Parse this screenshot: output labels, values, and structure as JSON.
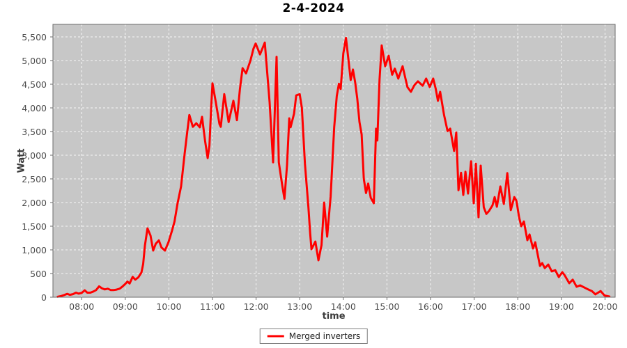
{
  "chart_data": {
    "type": "line",
    "title": "2-4-2024",
    "xlabel": "time",
    "ylabel": "Watt",
    "xlim": [
      7.342,
      20.233
    ],
    "ylim": [
      0,
      5765
    ],
    "grid": true,
    "legend_position": "bottom-center",
    "colors": {
      "plot_background": "#c7c7c7",
      "gridline": "#ffffff",
      "axis": "#6b6b6b",
      "series": "#ff0000"
    },
    "x_ticks": [
      {
        "value": 8,
        "label": "08:00"
      },
      {
        "value": 9,
        "label": "09:00"
      },
      {
        "value": 10,
        "label": "10:00"
      },
      {
        "value": 11,
        "label": "11:00"
      },
      {
        "value": 12,
        "label": "12:00"
      },
      {
        "value": 13,
        "label": "13:00"
      },
      {
        "value": 14,
        "label": "14:00"
      },
      {
        "value": 15,
        "label": "15:00"
      },
      {
        "value": 16,
        "label": "16:00"
      },
      {
        "value": 17,
        "label": "17:00"
      },
      {
        "value": 18,
        "label": "18:00"
      },
      {
        "value": 19,
        "label": "19:00"
      },
      {
        "value": 20,
        "label": "20:00"
      }
    ],
    "y_ticks": [
      {
        "value": 0,
        "label": "0"
      },
      {
        "value": 500,
        "label": "500"
      },
      {
        "value": 1000,
        "label": "1,000"
      },
      {
        "value": 1500,
        "label": "1,500"
      },
      {
        "value": 2000,
        "label": "2,000"
      },
      {
        "value": 2500,
        "label": "2,500"
      },
      {
        "value": 3000,
        "label": "3,000"
      },
      {
        "value": 3500,
        "label": "3,500"
      },
      {
        "value": 4000,
        "label": "4,000"
      },
      {
        "value": 4500,
        "label": "4,500"
      },
      {
        "value": 5000,
        "label": "5,000"
      },
      {
        "value": 5500,
        "label": "5,500"
      }
    ],
    "series": [
      {
        "name": "Merged inverters",
        "color": "#ff0000",
        "points": [
          [
            7.45,
            10
          ],
          [
            7.53,
            25
          ],
          [
            7.6,
            45
          ],
          [
            7.67,
            70
          ],
          [
            7.73,
            50
          ],
          [
            7.8,
            65
          ],
          [
            7.87,
            95
          ],
          [
            7.93,
            75
          ],
          [
            8.0,
            90
          ],
          [
            8.07,
            145
          ],
          [
            8.13,
            95
          ],
          [
            8.2,
            95
          ],
          [
            8.27,
            120
          ],
          [
            8.33,
            150
          ],
          [
            8.4,
            230
          ],
          [
            8.47,
            185
          ],
          [
            8.53,
            165
          ],
          [
            8.6,
            180
          ],
          [
            8.67,
            150
          ],
          [
            8.73,
            150
          ],
          [
            8.8,
            160
          ],
          [
            8.87,
            180
          ],
          [
            8.93,
            220
          ],
          [
            9.0,
            280
          ],
          [
            9.05,
            330
          ],
          [
            9.1,
            290
          ],
          [
            9.17,
            430
          ],
          [
            9.23,
            370
          ],
          [
            9.3,
            420
          ],
          [
            9.37,
            520
          ],
          [
            9.41,
            700
          ],
          [
            9.45,
            1090
          ],
          [
            9.51,
            1455
          ],
          [
            9.58,
            1300
          ],
          [
            9.64,
            985
          ],
          [
            9.7,
            1130
          ],
          [
            9.77,
            1200
          ],
          [
            9.83,
            1050
          ],
          [
            9.91,
            985
          ],
          [
            9.99,
            1160
          ],
          [
            10.07,
            1400
          ],
          [
            10.13,
            1600
          ],
          [
            10.2,
            1985
          ],
          [
            10.28,
            2340
          ],
          [
            10.36,
            3015
          ],
          [
            10.41,
            3410
          ],
          [
            10.47,
            3850
          ],
          [
            10.55,
            3600
          ],
          [
            10.63,
            3675
          ],
          [
            10.71,
            3590
          ],
          [
            10.76,
            3810
          ],
          [
            10.83,
            3300
          ],
          [
            10.89,
            2940
          ],
          [
            10.93,
            3200
          ],
          [
            10.97,
            4000
          ],
          [
            11.0,
            4520
          ],
          [
            11.08,
            4100
          ],
          [
            11.16,
            3660
          ],
          [
            11.19,
            3600
          ],
          [
            11.27,
            4290
          ],
          [
            11.37,
            3700
          ],
          [
            11.48,
            4150
          ],
          [
            11.56,
            3740
          ],
          [
            11.63,
            4400
          ],
          [
            11.69,
            4840
          ],
          [
            11.77,
            4730
          ],
          [
            11.87,
            5000
          ],
          [
            11.94,
            5250
          ],
          [
            11.99,
            5360
          ],
          [
            12.09,
            5130
          ],
          [
            12.2,
            5380
          ],
          [
            12.31,
            4120
          ],
          [
            12.39,
            2850
          ],
          [
            12.47,
            5080
          ],
          [
            12.52,
            2850
          ],
          [
            12.6,
            2355
          ],
          [
            12.65,
            2080
          ],
          [
            12.71,
            2790
          ],
          [
            12.76,
            3780
          ],
          [
            12.79,
            3590
          ],
          [
            12.87,
            3880
          ],
          [
            12.92,
            4265
          ],
          [
            13.0,
            4290
          ],
          [
            13.05,
            4000
          ],
          [
            13.12,
            2820
          ],
          [
            13.2,
            1900
          ],
          [
            13.24,
            1350
          ],
          [
            13.27,
            1015
          ],
          [
            13.36,
            1175
          ],
          [
            13.43,
            780
          ],
          [
            13.5,
            1100
          ],
          [
            13.56,
            2000
          ],
          [
            13.63,
            1280
          ],
          [
            13.71,
            2130
          ],
          [
            13.79,
            3590
          ],
          [
            13.85,
            4250
          ],
          [
            13.9,
            4510
          ],
          [
            13.94,
            4400
          ],
          [
            14.0,
            5150
          ],
          [
            14.06,
            5480
          ],
          [
            14.12,
            5000
          ],
          [
            14.17,
            4590
          ],
          [
            14.22,
            4810
          ],
          [
            14.27,
            4550
          ],
          [
            14.32,
            4200
          ],
          [
            14.37,
            3700
          ],
          [
            14.42,
            3440
          ],
          [
            14.47,
            2500
          ],
          [
            14.52,
            2200
          ],
          [
            14.57,
            2400
          ],
          [
            14.63,
            2100
          ],
          [
            14.7,
            1985
          ],
          [
            14.75,
            3560
          ],
          [
            14.78,
            3310
          ],
          [
            14.83,
            4600
          ],
          [
            14.88,
            5320
          ],
          [
            14.96,
            4880
          ],
          [
            15.04,
            5100
          ],
          [
            15.12,
            4700
          ],
          [
            15.18,
            4830
          ],
          [
            15.26,
            4620
          ],
          [
            15.36,
            4880
          ],
          [
            15.47,
            4440
          ],
          [
            15.55,
            4340
          ],
          [
            15.63,
            4480
          ],
          [
            15.71,
            4560
          ],
          [
            15.82,
            4470
          ],
          [
            15.9,
            4620
          ],
          [
            15.98,
            4440
          ],
          [
            16.06,
            4620
          ],
          [
            16.12,
            4400
          ],
          [
            16.17,
            4150
          ],
          [
            16.22,
            4340
          ],
          [
            16.31,
            3850
          ],
          [
            16.39,
            3510
          ],
          [
            16.45,
            3560
          ],
          [
            16.54,
            3090
          ],
          [
            16.59,
            3480
          ],
          [
            16.64,
            2260
          ],
          [
            16.7,
            2630
          ],
          [
            16.75,
            2160
          ],
          [
            16.8,
            2650
          ],
          [
            16.86,
            2190
          ],
          [
            16.93,
            2870
          ],
          [
            16.99,
            1985
          ],
          [
            17.04,
            2820
          ],
          [
            17.1,
            1690
          ],
          [
            17.15,
            2780
          ],
          [
            17.22,
            1900
          ],
          [
            17.28,
            1760
          ],
          [
            17.34,
            1820
          ],
          [
            17.42,
            1940
          ],
          [
            17.47,
            2115
          ],
          [
            17.52,
            1910
          ],
          [
            17.6,
            2340
          ],
          [
            17.68,
            1970
          ],
          [
            17.76,
            2620
          ],
          [
            17.84,
            1840
          ],
          [
            17.92,
            2115
          ],
          [
            17.97,
            2040
          ],
          [
            18.03,
            1690
          ],
          [
            18.08,
            1500
          ],
          [
            18.14,
            1600
          ],
          [
            18.22,
            1205
          ],
          [
            18.27,
            1325
          ],
          [
            18.35,
            1030
          ],
          [
            18.4,
            1160
          ],
          [
            18.51,
            660
          ],
          [
            18.56,
            720
          ],
          [
            18.62,
            615
          ],
          [
            18.7,
            690
          ],
          [
            18.78,
            545
          ],
          [
            18.86,
            570
          ],
          [
            18.94,
            425
          ],
          [
            19.02,
            530
          ],
          [
            19.07,
            470
          ],
          [
            19.18,
            295
          ],
          [
            19.26,
            370
          ],
          [
            19.35,
            220
          ],
          [
            19.43,
            250
          ],
          [
            19.59,
            175
          ],
          [
            19.7,
            130
          ],
          [
            19.78,
            60
          ],
          [
            19.9,
            130
          ],
          [
            19.99,
            35
          ],
          [
            20.1,
            15
          ]
        ]
      }
    ]
  }
}
